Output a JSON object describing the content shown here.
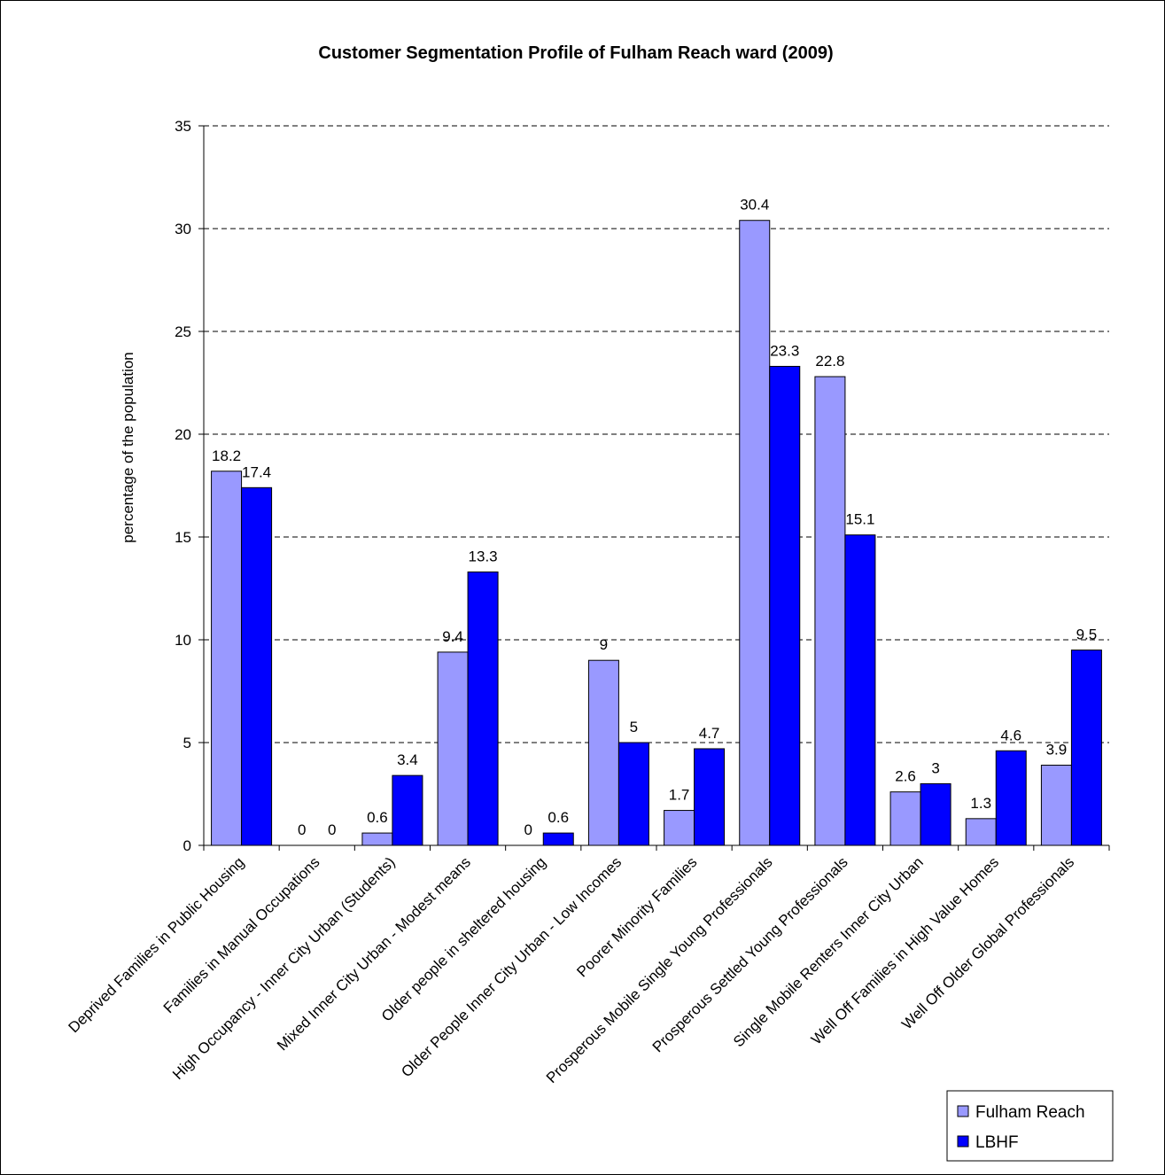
{
  "chart_data": {
    "type": "bar",
    "title": "Customer Segmentation Profile of Fulham Reach ward (2009)",
    "xlabel": "",
    "ylabel": "percentage of the population",
    "ylim": [
      0,
      35
    ],
    "yticks": [
      0,
      5,
      10,
      15,
      20,
      25,
      30,
      35
    ],
    "grid": "horizontal dashed",
    "legend_position": "bottom-right",
    "categories": [
      "Deprived Families in Public Housing",
      "Families in Manual Occupations",
      "High Occupancy - Inner City Urban (Students)",
      "Mixed Inner City Urban - Modest means",
      "Older people in sheltered housing",
      "Older People Inner City Urban - Low Incomes",
      "Poorer Minority Families",
      "Prosperous Mobile Single Young Professionals",
      "Prosperous Settled Young Professionals",
      "Single Mobile Renters Inner City Urban",
      "Well Off Families in High Value Homes",
      "Well Off Older Global Professionals"
    ],
    "series": [
      {
        "name": "Fulham Reach",
        "color": "#9999ff",
        "values": [
          18.2,
          0,
          0.6,
          9.4,
          0,
          9,
          1.7,
          30.4,
          22.8,
          2.6,
          1.3,
          3.9
        ]
      },
      {
        "name": "LBHF",
        "color": "#0000ff",
        "values": [
          17.4,
          0,
          3.4,
          13.3,
          0.6,
          5,
          4.7,
          23.3,
          15.1,
          3,
          4.6,
          9.5
        ]
      }
    ]
  }
}
